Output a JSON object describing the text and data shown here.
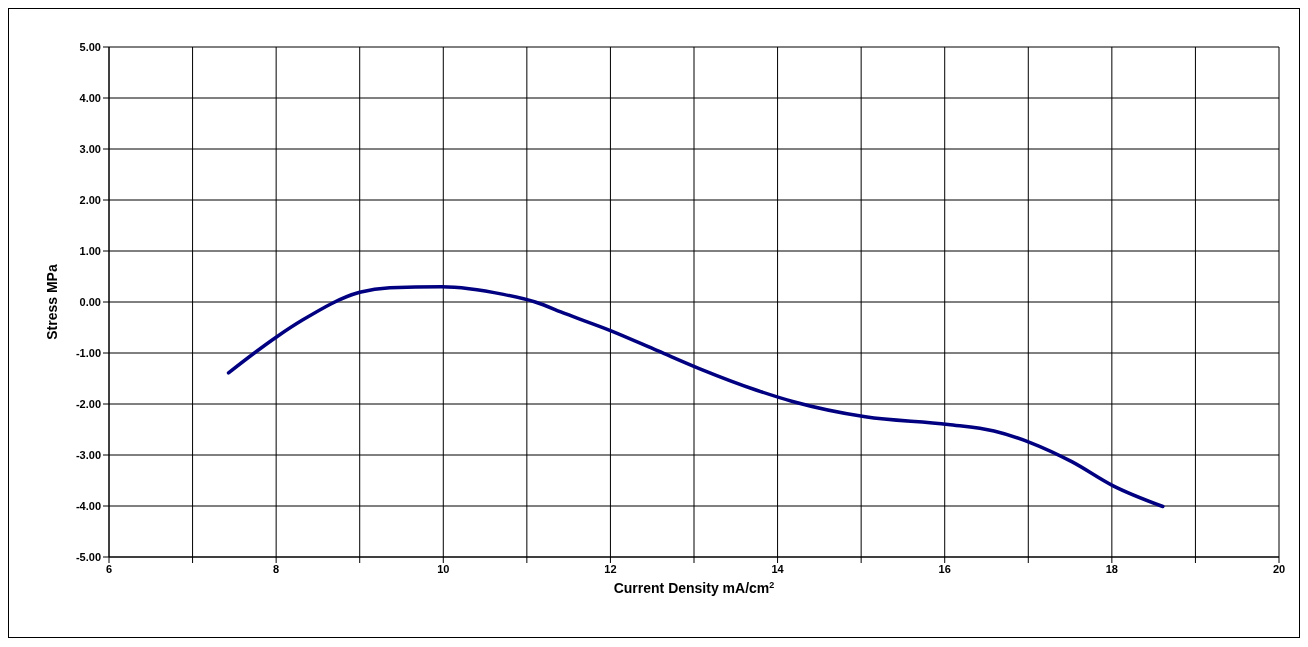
{
  "chart_data": {
    "type": "line",
    "xlabel": "Current Density mA/cm$^{2}$",
    "ylabel": "Stress MPa",
    "x": [
      7.43,
      8.0,
      8.32,
      9.0,
      9.36,
      9.98,
      10.72,
      11.1,
      11.46,
      12.0,
      12.57,
      13.07,
      13.75,
      14.18,
      15.05,
      16.04,
      16.59,
      17.03,
      17.52,
      18.01,
      18.61
    ],
    "series": [
      {
        "color": "#000080",
        "values": [
          -1.39,
          -0.69,
          -0.35,
          0.19,
          0.28,
          0.3,
          0.15,
          0.0,
          -0.23,
          -0.56,
          -0.96,
          -1.31,
          -1.73,
          -1.95,
          -2.25,
          -2.4,
          -2.53,
          -2.76,
          -3.13,
          -3.6,
          -4.01
        ]
      }
    ],
    "xlim": [
      6,
      20
    ],
    "xticks": [
      6,
      {
        "value": 7,
        "label": null
      },
      8,
      {
        "value": 9,
        "label": null
      },
      10,
      {
        "value": 11,
        "label": null
      },
      12,
      {
        "value": 13,
        "label": null
      },
      14,
      {
        "value": 15,
        "label": null
      },
      16,
      {
        "value": 17,
        "label": null
      },
      18,
      {
        "value": 19,
        "label": null
      },
      20
    ],
    "ylim": [
      -5,
      5
    ],
    "yticks": [
      {
        "value": -5,
        "label": "-5.00"
      },
      {
        "value": -4,
        "label": "-4.00"
      },
      {
        "value": -3,
        "label": "-3.00"
      },
      {
        "value": -2,
        "label": "-2.00"
      },
      {
        "value": -1,
        "label": "-1.00"
      },
      {
        "value": 0,
        "label": "0.00"
      },
      {
        "value": 1,
        "label": "1.00"
      },
      {
        "value": 2,
        "label": "2.00"
      },
      {
        "value": 3,
        "label": "3.00"
      },
      {
        "value": 4,
        "label": "4.00"
      },
      {
        "value": 5,
        "label": "5.00"
      }
    ],
    "grid": true,
    "marker": "none",
    "line_style": "solid"
  }
}
